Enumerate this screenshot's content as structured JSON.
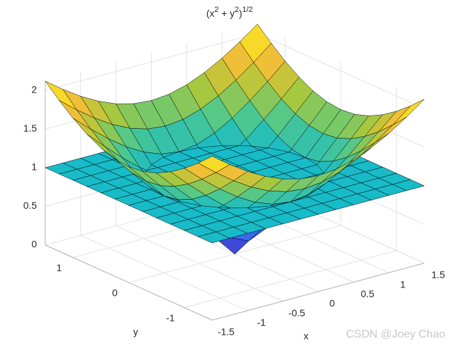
{
  "chart_data": {
    "type": "surface",
    "title": {
      "base": [
        "(x",
        " + y",
        ")"
      ],
      "sup": [
        "2",
        "2",
        "1/2"
      ]
    },
    "xlabel": "x",
    "ylabel": "y",
    "xlim": [
      -1.5,
      1.5
    ],
    "ylim": [
      -1.5,
      1.5
    ],
    "zlim": [
      0,
      2.1213
    ],
    "xticks": [
      -1.5,
      -1,
      -0.5,
      0,
      0.5,
      1,
      1.5
    ],
    "yticks": [
      -1,
      0,
      1
    ],
    "zticks": [
      0,
      0.5,
      1,
      1.5,
      2
    ],
    "grid": true,
    "colormap": "parula",
    "edge_color": "#000000",
    "x": [
      -1.5,
      -1.25,
      -1,
      -0.75,
      -0.5,
      -0.25,
      0,
      0.25,
      0.5,
      0.75,
      1,
      1.25,
      1.5
    ],
    "y": [
      -1.5,
      -1.25,
      -1,
      -0.75,
      -0.5,
      -0.25,
      0,
      0.25,
      0.5,
      0.75,
      1,
      1.25,
      1.5
    ],
    "series": [
      {
        "z": [
          [
            2.1213,
            1.9526,
            1.8028,
            1.6771,
            1.5811,
            1.5207,
            1.5,
            1.5207,
            1.5811,
            1.6771,
            1.8028,
            1.9526,
            2.1213
          ],
          [
            1.9526,
            1.7678,
            1.6008,
            1.4577,
            1.3463,
            1.2748,
            1.25,
            1.2748,
            1.3463,
            1.4577,
            1.6008,
            1.7678,
            1.9526
          ],
          [
            1.8028,
            1.6008,
            1.4142,
            1.25,
            1.118,
            1.0308,
            1,
            1.0308,
            1.118,
            1.25,
            1.4142,
            1.6008,
            1.8028
          ],
          [
            1.6771,
            1.4577,
            1.25,
            1.0607,
            0.9014,
            0.7906,
            0.75,
            0.7906,
            0.9014,
            1.0607,
            1.25,
            1.4577,
            1.6771
          ],
          [
            1.5811,
            1.3463,
            1.118,
            0.9014,
            0.7071,
            0.559,
            0.5,
            0.559,
            0.7071,
            0.9014,
            1.118,
            1.3463,
            1.5811
          ],
          [
            1.5207,
            1.2748,
            1.0308,
            0.7906,
            0.559,
            0.3536,
            0.25,
            0.3536,
            0.559,
            0.7906,
            1.0308,
            1.2748,
            1.5207
          ],
          [
            1.5,
            1.25,
            1,
            0.75,
            0.5,
            0.25,
            0,
            0.25,
            0.5,
            0.75,
            1,
            1.25,
            1.5
          ],
          [
            1.5207,
            1.2748,
            1.0308,
            0.7906,
            0.559,
            0.3536,
            0.25,
            0.3536,
            0.559,
            0.7906,
            1.0308,
            1.2748,
            1.5207
          ],
          [
            1.5811,
            1.3463,
            1.118,
            0.9014,
            0.7071,
            0.559,
            0.5,
            0.559,
            0.7071,
            0.9014,
            1.118,
            1.3463,
            1.5811
          ],
          [
            1.6771,
            1.4577,
            1.25,
            1.0607,
            0.9014,
            0.7906,
            0.75,
            0.7906,
            0.9014,
            1.0607,
            1.25,
            1.4577,
            1.6771
          ],
          [
            1.8028,
            1.6008,
            1.4142,
            1.25,
            1.118,
            1.0308,
            1,
            1.0308,
            1.118,
            1.25,
            1.4142,
            1.6008,
            1.8028
          ],
          [
            1.9526,
            1.7678,
            1.6008,
            1.4577,
            1.3463,
            1.2748,
            1.25,
            1.2748,
            1.3463,
            1.4577,
            1.6008,
            1.7678,
            1.9526
          ],
          [
            2.1213,
            1.9526,
            1.8028,
            1.6771,
            1.5811,
            1.5207,
            1.5,
            1.5207,
            1.5811,
            1.6771,
            1.8028,
            1.9526,
            2.1213
          ]
        ]
      },
      {
        "z": [
          [
            1,
            1,
            1,
            1,
            1,
            1,
            1,
            1,
            1,
            1,
            1,
            1,
            1
          ],
          [
            1,
            1,
            1,
            1,
            1,
            1,
            1,
            1,
            1,
            1,
            1,
            1,
            1
          ],
          [
            1,
            1,
            1,
            1,
            1,
            1,
            1,
            1,
            1,
            1,
            1,
            1,
            1
          ],
          [
            1,
            1,
            1,
            1,
            1,
            1,
            1,
            1,
            1,
            1,
            1,
            1,
            1
          ],
          [
            1,
            1,
            1,
            1,
            1,
            1,
            1,
            1,
            1,
            1,
            1,
            1,
            1
          ],
          [
            1,
            1,
            1,
            1,
            1,
            1,
            1,
            1,
            1,
            1,
            1,
            1,
            1
          ],
          [
            1,
            1,
            1,
            1,
            1,
            1,
            1,
            1,
            1,
            1,
            1,
            1,
            1
          ],
          [
            1,
            1,
            1,
            1,
            1,
            1,
            1,
            1,
            1,
            1,
            1,
            1,
            1
          ],
          [
            1,
            1,
            1,
            1,
            1,
            1,
            1,
            1,
            1,
            1,
            1,
            1,
            1
          ],
          [
            1,
            1,
            1,
            1,
            1,
            1,
            1,
            1,
            1,
            1,
            1,
            1,
            1
          ],
          [
            1,
            1,
            1,
            1,
            1,
            1,
            1,
            1,
            1,
            1,
            1,
            1,
            1
          ],
          [
            1,
            1,
            1,
            1,
            1,
            1,
            1,
            1,
            1,
            1,
            1,
            1,
            1
          ],
          [
            1,
            1,
            1,
            1,
            1,
            1,
            1,
            1,
            1,
            1,
            1,
            1,
            1
          ]
        ]
      }
    ],
    "watermark": "CSDN @Joey Chao"
  }
}
